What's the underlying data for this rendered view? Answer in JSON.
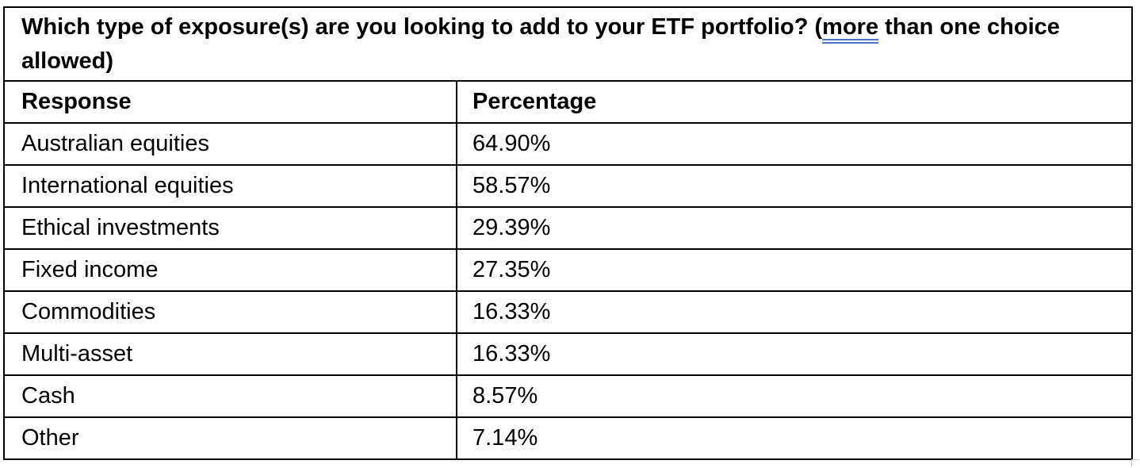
{
  "table": {
    "title_before": "Which type of exposure(s) are you looking to add to your ETF portfolio? (",
    "title_marked": "more",
    "title_after": " than one choice allowed)",
    "headers": {
      "response": "Response",
      "percentage": "Percentage"
    },
    "rows": [
      {
        "response": "Australian equities",
        "percentage": "64.90%"
      },
      {
        "response": "International equities",
        "percentage": "58.57%"
      },
      {
        "response": "Ethical investments",
        "percentage": "29.39%"
      },
      {
        "response": "Fixed income",
        "percentage": "27.35%"
      },
      {
        "response": "Commodities",
        "percentage": "16.33%"
      },
      {
        "response": "Multi-asset",
        "percentage": "16.33%"
      },
      {
        "response": "Cash",
        "percentage": "8.57%"
      },
      {
        "response": "Other",
        "percentage": "7.14%"
      }
    ]
  }
}
